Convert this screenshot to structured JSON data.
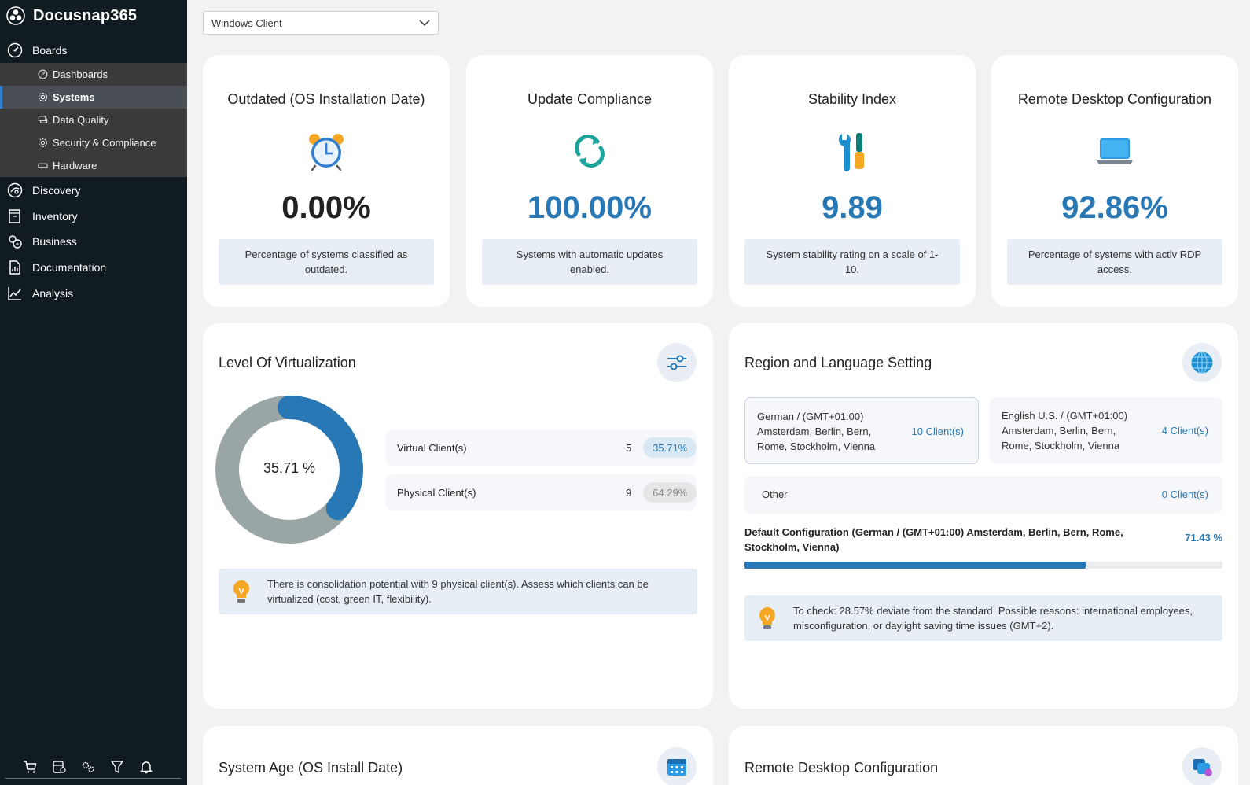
{
  "app": {
    "name": "Docusnap365"
  },
  "sidebar": {
    "boards_label": "Boards",
    "subitems": [
      {
        "label": "Dashboards"
      },
      {
        "label": "Systems"
      },
      {
        "label": "Data Quality"
      },
      {
        "label": "Security & Compliance"
      },
      {
        "label": "Hardware"
      }
    ],
    "items": [
      {
        "label": "Discovery"
      },
      {
        "label": "Inventory"
      },
      {
        "label": "Business"
      },
      {
        "label": "Documentation"
      },
      {
        "label": "Analysis"
      }
    ]
  },
  "filter": {
    "selected": "Windows Client"
  },
  "kpis": [
    {
      "title": "Outdated (OS Installation Date)",
      "value": "0.00%",
      "desc": "Percentage of systems classified as outdated.",
      "color": "#222222"
    },
    {
      "title": "Update Compliance",
      "value": "100.00%",
      "desc": "Systems with automatic updates enabled.",
      "color": "#2878b5"
    },
    {
      "title": "Stability Index",
      "value": "9.89",
      "desc": "System stability rating on a scale of 1-10.",
      "color": "#2878b5"
    },
    {
      "title": "Remote Desktop Configuration",
      "value": "92.86%",
      "desc": "Percentage of systems with activ RDP access.",
      "color": "#2878b5"
    }
  ],
  "virtualization": {
    "title": "Level Of Virtualization",
    "center_label": "35.71 %",
    "virtual_fraction": 0.3571,
    "rows": [
      {
        "label": "Virtual Client(s)",
        "count": "5",
        "pct": "35.71%"
      },
      {
        "label": "Physical Client(s)",
        "count": "9",
        "pct": "64.29%"
      }
    ],
    "tip": "There is consolidation potential with 9 physical client(s). Assess which clients can be virtualized (cost, green IT, flexibility)."
  },
  "region": {
    "title": "Region and Language Setting",
    "boxes": [
      {
        "name": "German / (GMT+01:00) Amsterdam, Berlin, Bern, Rome, Stockholm, Vienna",
        "count": "10 Client(s)"
      },
      {
        "name": "English U.S. / (GMT+01:00) Amsterdam, Berlin, Bern, Rome, Stockholm, Vienna",
        "count": "4 Client(s)"
      }
    ],
    "other": {
      "name": "Other",
      "count": "0 Client(s)"
    },
    "default_label": "Default Configuration (German / (GMT+01:00) Amsterdam, Berlin, Bern, Rome, Stockholm, Vienna)",
    "default_pct": "71.43 %",
    "default_fraction": 0.7143,
    "tip": "To check: 28.57% deviate from the standard. Possible reasons: international employees, misconfiguration, or daylight saving time issues (GMT+2)."
  },
  "system_age": {
    "title": "System Age (OS Install Date)"
  },
  "rdp": {
    "title": "Remote Desktop Configuration"
  },
  "colors": {
    "accent": "#2878b5",
    "sidebar": "#111c22",
    "donut_gray": "#9aa5a6"
  }
}
